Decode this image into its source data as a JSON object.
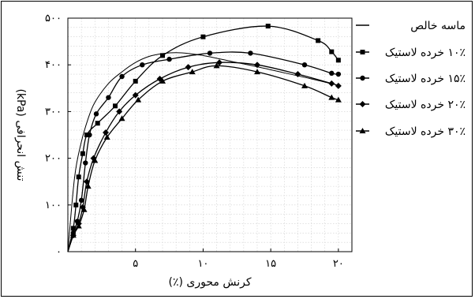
{
  "chart_data": {
    "type": "line",
    "title": "",
    "xlabel": "کرنش محوری (٪)",
    "ylabel": "تنش انحرافی (kPa)",
    "xlim": [
      0,
      21
    ],
    "ylim": [
      0,
      500
    ],
    "grid": true,
    "legend_position": "right",
    "x_ticks": [
      {
        "value": 5,
        "label": "۵"
      },
      {
        "value": 10,
        "label": "۱۰"
      },
      {
        "value": 15,
        "label": "۱۵"
      },
      {
        "value": 20,
        "label": "۲۰"
      }
    ],
    "y_ticks": [
      {
        "value": 0,
        "label": "۰"
      },
      {
        "value": 100,
        "label": "۱۰۰"
      },
      {
        "value": 200,
        "label": "۲۰۰"
      },
      {
        "value": 300,
        "label": "۳۰۰"
      },
      {
        "value": 400,
        "label": "۴۰۰"
      },
      {
        "value": 500,
        "label": "۵۰۰"
      }
    ],
    "series": [
      {
        "name": "ماسه خالص",
        "marker": "none",
        "x": [
          0,
          0.5,
          1,
          1.5,
          2,
          3,
          4,
          5,
          6,
          7,
          8,
          9,
          10,
          12,
          14,
          16,
          18,
          20
        ],
        "y": [
          0,
          160,
          235,
          285,
          320,
          360,
          385,
          405,
          418,
          424,
          426,
          424,
          420,
          408,
          396,
          383,
          370,
          356
        ]
      },
      {
        "name": "۱۰٪ خرده لاستیک",
        "marker": "square",
        "x": [
          0,
          0.4,
          0.6,
          0.8,
          1.1,
          1.4,
          2.2,
          3.5,
          5,
          7,
          10,
          14.8,
          18.5,
          19.5,
          20
        ],
        "y": [
          0,
          50,
          100,
          160,
          210,
          250,
          275,
          312,
          365,
          420,
          460,
          483,
          452,
          428,
          410
        ]
      },
      {
        "name": "۱۵٪ خرده لاستیک",
        "marker": "circle",
        "x": [
          0,
          0.4,
          0.7,
          1.0,
          1.3,
          1.6,
          2.1,
          3.0,
          4.0,
          5.5,
          7.5,
          10.5,
          13.5,
          17.5,
          19.5,
          20
        ],
        "y": [
          0,
          40,
          65,
          110,
          190,
          250,
          295,
          330,
          375,
          400,
          412,
          425,
          425,
          400,
          382,
          380
        ]
      },
      {
        "name": "۲۰٪ خرده لاستیک",
        "marker": "diamond",
        "x": [
          0,
          0.4,
          0.8,
          1.1,
          1.4,
          1.9,
          2.8,
          3.8,
          5.0,
          6.8,
          8.9,
          11.2,
          14.0,
          17.0,
          19.5,
          20
        ],
        "y": [
          0,
          35,
          60,
          95,
          150,
          200,
          255,
          300,
          335,
          370,
          395,
          405,
          400,
          380,
          360,
          355
        ]
      },
      {
        "name": "۳۰٪ خرده لاستیک",
        "marker": "triangle",
        "x": [
          0,
          0.4,
          0.8,
          1.2,
          1.5,
          2.0,
          2.9,
          4.0,
          5.2,
          7.0,
          9.2,
          11.0,
          14.0,
          17.5,
          19.5,
          20
        ],
        "y": [
          0,
          35,
          55,
          90,
          140,
          195,
          245,
          285,
          325,
          365,
          385,
          398,
          385,
          355,
          330,
          325
        ]
      }
    ]
  }
}
